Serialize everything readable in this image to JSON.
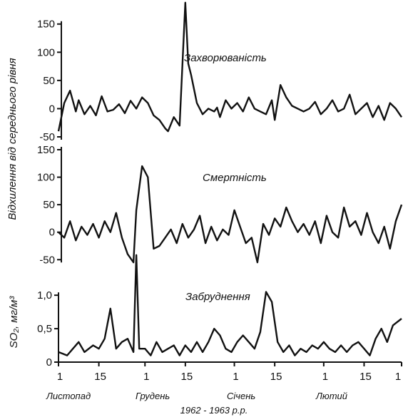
{
  "chart_data": {
    "type": "line",
    "ylabel": "Відхилення від середнього рівня",
    "xlabel": "1962 - 1963 р.р.",
    "x_ticks": [
      "1",
      "15",
      "1",
      "15",
      "1",
      "15",
      "1",
      "15",
      "1"
    ],
    "months": [
      "Листопад",
      "Грудень",
      "Січень",
      "Лютий"
    ],
    "grid": false,
    "legend": "none",
    "panels": [
      {
        "name": "Захворюваність",
        "ylim": [
          -50,
          180
        ],
        "yticks": [
          "150",
          "100",
          "50",
          "0",
          "-50"
        ],
        "ytick_values": [
          150,
          100,
          50,
          0,
          -50
        ],
        "x": [
          0,
          2,
          4,
          6,
          7,
          9,
          11,
          13,
          15,
          17,
          19,
          21,
          23,
          25,
          27,
          29,
          31,
          33,
          35,
          37,
          38,
          40,
          42,
          44,
          45,
          46,
          48,
          50,
          52,
          54,
          55,
          56,
          58,
          60,
          62,
          64,
          66,
          68,
          70,
          72,
          74,
          75,
          77,
          79,
          81,
          83,
          85,
          87,
          89,
          91,
          93,
          95,
          97,
          99,
          101,
          103,
          105,
          107,
          109,
          111,
          113,
          115,
          117,
          119
        ],
        "values": [
          -40,
          10,
          32,
          -5,
          15,
          -10,
          5,
          -12,
          22,
          -5,
          -2,
          8,
          -8,
          14,
          0,
          20,
          10,
          -12,
          -20,
          -35,
          -40,
          -15,
          -30,
          188,
          80,
          60,
          10,
          -10,
          0,
          -5,
          2,
          -15,
          15,
          0,
          10,
          -5,
          20,
          0,
          -5,
          -10,
          15,
          -20,
          42,
          20,
          5,
          0,
          -5,
          0,
          12,
          -10,
          0,
          15,
          -5,
          0,
          25,
          -10,
          0,
          10,
          -15,
          5,
          -20,
          10,
          0,
          -15
        ]
      },
      {
        "name": "Смертність",
        "ylim": [
          -60,
          150
        ],
        "yticks": [
          "150",
          "100",
          "50",
          "0",
          "-50"
        ],
        "ytick_values": [
          150,
          100,
          50,
          0,
          -50
        ],
        "x": [
          0,
          2,
          4,
          6,
          8,
          10,
          12,
          14,
          16,
          18,
          20,
          22,
          24,
          26,
          27,
          29,
          31,
          33,
          35,
          37,
          39,
          41,
          43,
          45,
          47,
          49,
          51,
          53,
          55,
          57,
          59,
          61,
          63,
          65,
          67,
          69,
          71,
          73,
          75,
          77,
          79,
          81,
          83,
          85,
          87,
          89,
          91,
          93,
          95,
          97,
          99,
          101,
          103,
          105,
          107,
          109,
          111,
          113,
          115,
          117,
          119
        ],
        "values": [
          0,
          -10,
          20,
          -15,
          10,
          -5,
          15,
          -10,
          20,
          0,
          35,
          -10,
          -40,
          -55,
          40,
          120,
          100,
          -30,
          -25,
          -10,
          5,
          -20,
          15,
          -10,
          5,
          30,
          -20,
          10,
          -15,
          5,
          -5,
          40,
          10,
          -20,
          -10,
          -55,
          15,
          -5,
          25,
          10,
          45,
          20,
          0,
          15,
          -5,
          20,
          -20,
          30,
          0,
          -10,
          45,
          10,
          20,
          -5,
          35,
          0,
          -20,
          10,
          -30,
          20,
          50
        ]
      },
      {
        "name": "Забруднення",
        "ylabel": "SO₂, мг/м³",
        "ylim": [
          0,
          1.3
        ],
        "yticks": [
          "1,0",
          "0,5",
          "0"
        ],
        "ytick_values": [
          1.0,
          0.5,
          0
        ],
        "x": [
          0,
          3,
          5,
          7,
          9,
          12,
          14,
          16,
          18,
          20,
          22,
          24,
          26,
          27,
          28,
          30,
          32,
          34,
          36,
          38,
          40,
          42,
          44,
          46,
          48,
          50,
          52,
          54,
          56,
          58,
          60,
          62,
          64,
          66,
          68,
          70,
          72,
          74,
          76,
          78,
          80,
          82,
          84,
          86,
          88,
          90,
          92,
          94,
          96,
          98,
          100,
          102,
          104,
          106,
          108,
          110,
          112,
          114,
          116,
          119
        ],
        "values": [
          0.15,
          0.1,
          0.2,
          0.3,
          0.15,
          0.25,
          0.2,
          0.35,
          0.8,
          0.2,
          0.3,
          0.35,
          0.15,
          1.6,
          0.2,
          0.2,
          0.1,
          0.3,
          0.15,
          0.2,
          0.25,
          0.1,
          0.25,
          0.15,
          0.3,
          0.15,
          0.3,
          0.5,
          0.4,
          0.2,
          0.15,
          0.3,
          0.4,
          0.3,
          0.2,
          0.45,
          1.05,
          0.9,
          0.3,
          0.15,
          0.25,
          0.1,
          0.2,
          0.15,
          0.25,
          0.2,
          0.3,
          0.2,
          0.15,
          0.25,
          0.15,
          0.25,
          0.3,
          0.2,
          0.1,
          0.35,
          0.5,
          0.3,
          0.55,
          0.65
        ]
      }
    ]
  }
}
